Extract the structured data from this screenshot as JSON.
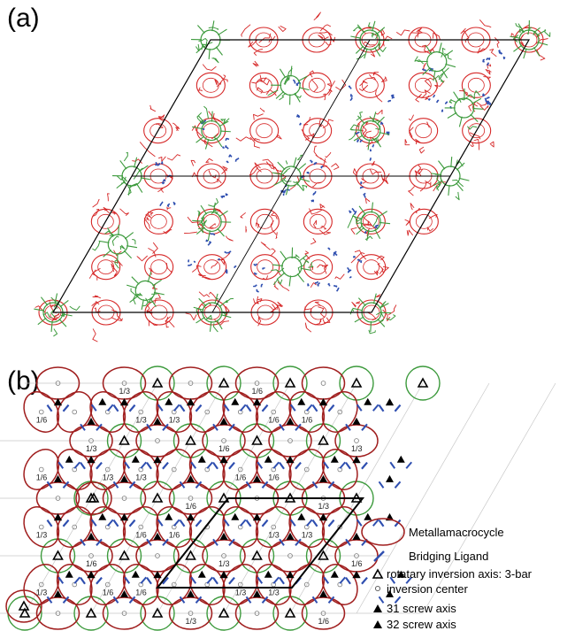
{
  "panel_a": {
    "label": "(a)"
  },
  "panel_b": {
    "label": "(b)",
    "legend": [
      {
        "symbol": "metallamacrocycle",
        "text": "Metallamacrocycle"
      },
      {
        "symbol": "bridging-ligand",
        "text": "Bridging Ligand"
      },
      {
        "symbol": "inversion-axis",
        "text": "rotatary inversion axis: 3-bar"
      },
      {
        "symbol": "inversion-center",
        "text": "inversion center"
      },
      {
        "symbol": "screw-axis-31",
        "text": "31 screw axis"
      },
      {
        "symbol": "screw-axis-32",
        "text": "32 screw axis"
      }
    ],
    "height_labels": [
      "1/3",
      "1/6"
    ]
  },
  "colors": {
    "metallamacrocycle": "#a01e1e",
    "cluster": "#3c9a3c",
    "bridging": "#2f4fb0",
    "structure_red": "#d62828",
    "cell_line": "#000000"
  }
}
